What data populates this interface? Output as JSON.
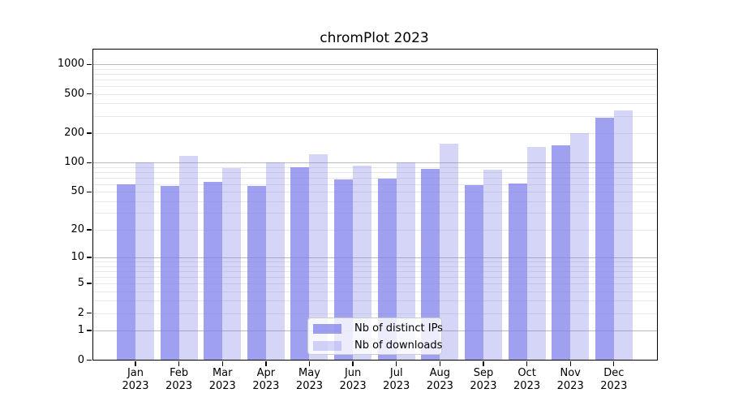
{
  "figure": {
    "title": "chromPlot 2023"
  },
  "chart_data": {
    "type": "bar",
    "title": "chromPlot 2023",
    "categories": [
      {
        "month": "Jan",
        "year": "2023"
      },
      {
        "month": "Feb",
        "year": "2023"
      },
      {
        "month": "Mar",
        "year": "2023"
      },
      {
        "month": "Apr",
        "year": "2023"
      },
      {
        "month": "May",
        "year": "2023"
      },
      {
        "month": "Jun",
        "year": "2023"
      },
      {
        "month": "Jul",
        "year": "2023"
      },
      {
        "month": "Aug",
        "year": "2023"
      },
      {
        "month": "Sep",
        "year": "2023"
      },
      {
        "month": "Oct",
        "year": "2023"
      },
      {
        "month": "Nov",
        "year": "2023"
      },
      {
        "month": "Dec",
        "year": "2023"
      }
    ],
    "series": [
      {
        "name": "Nb of distinct IPs",
        "key": "distinct-ips",
        "color": "rgba(123,123,234,0.72)",
        "values": [
          60,
          58,
          63,
          57,
          89,
          67,
          69,
          86,
          59,
          61,
          150,
          289
        ]
      },
      {
        "name": "Nb of downloads",
        "key": "downloads",
        "color": "rgba(123,123,234,0.32)",
        "values": [
          100,
          117,
          88,
          100,
          121,
          93,
          101,
          155,
          85,
          143,
          198,
          340
        ]
      }
    ],
    "xlabel": "",
    "ylabel": "",
    "y_axis": {
      "scale": "log10(value+1)",
      "tick_labels": [
        0,
        1,
        2,
        5,
        10,
        20,
        50,
        100,
        200,
        500,
        1000
      ],
      "major_gridlines": [
        1,
        10,
        100,
        1000
      ],
      "minor_gridlines": [
        2,
        3,
        4,
        5,
        6,
        7,
        8,
        9,
        20,
        30,
        40,
        50,
        60,
        70,
        80,
        90,
        200,
        300,
        400,
        500,
        600,
        700,
        800,
        900
      ],
      "ylim": [
        0,
        1440
      ],
      "grid": true
    },
    "legend_position": "lower center",
    "colors": {
      "bar_base": "#7b7bea",
      "grid_major": "#bababa",
      "grid_minor": "#e8e8e8",
      "axis_frame": "#000000",
      "legend_border": "#cccccc",
      "legend_background": "rgba(255,255,255,0.8)",
      "background": "#ffffff",
      "text": "#000000"
    }
  }
}
